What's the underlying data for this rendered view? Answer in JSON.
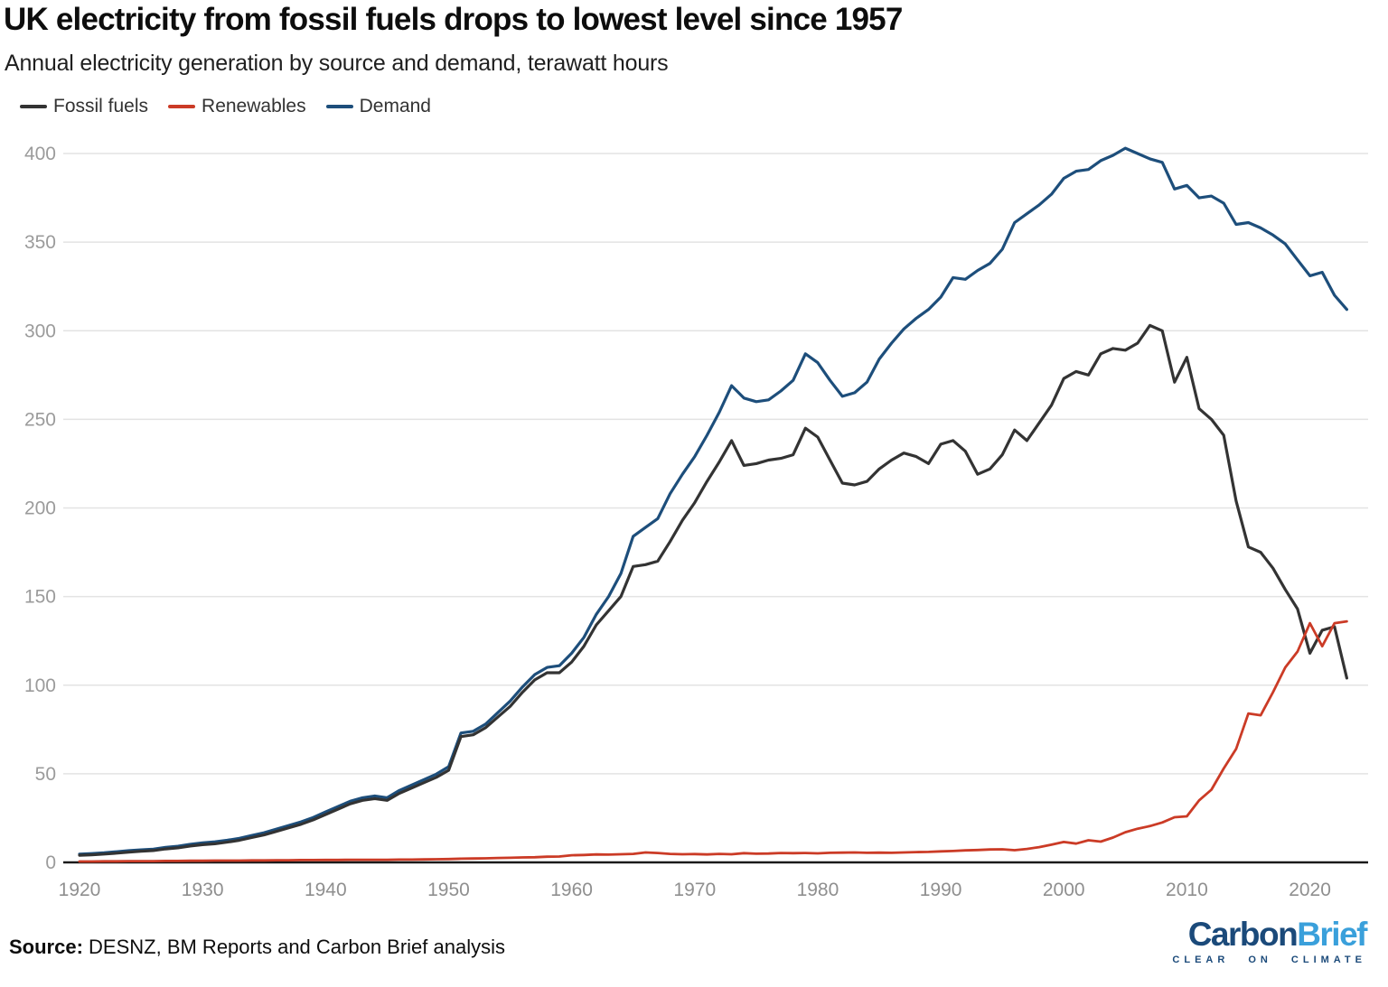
{
  "header": {
    "title": "UK electricity from fossil fuels drops to lowest level since 1957",
    "subtitle": "Annual electricity generation by source and demand, terawatt hours"
  },
  "footer": {
    "source_label": "Source:",
    "source_text": " DESNZ, BM Reports and Carbon Brief analysis"
  },
  "logo": {
    "word1": "Carbon",
    "word2": "Brief",
    "tagline": "CLEAR ON CLIMATE",
    "word1_color": "#1b4a7a",
    "word2_color": "#3aa0db",
    "tagline_color": "#1b4a7a"
  },
  "colors": {
    "fossil": "#333333",
    "renewables": "#cb3b26",
    "demand": "#1d4e7b",
    "grid": "#e3e3e3",
    "axis": "#1a1a1a"
  },
  "chart_data": {
    "type": "line",
    "title": "UK electricity from fossil fuels drops to lowest level since 1957",
    "subtitle": "Annual electricity generation by source and demand, terawatt hours",
    "xlabel": "",
    "ylabel": "terawatt hours",
    "x_start": 1920,
    "x_end": 2023,
    "xlim": [
      1920,
      2023
    ],
    "ylim": [
      0,
      410
    ],
    "grid": true,
    "legend_position": "top-left",
    "xticks": [
      1920,
      1930,
      1940,
      1950,
      1960,
      1970,
      1980,
      1990,
      2000,
      2010,
      2020
    ],
    "yticks": [
      0,
      50,
      100,
      150,
      200,
      250,
      300,
      350,
      400
    ],
    "series": [
      {
        "name": "Fossil fuels",
        "color": "#333333",
        "values": [
          4,
          4.3,
          4.7,
          5.2,
          5.8,
          6.3,
          6.7,
          7.6,
          8.2,
          9.2,
          10,
          10.5,
          11.4,
          12.5,
          14,
          15.5,
          17.5,
          19.5,
          21.5,
          24,
          27,
          30,
          33,
          35,
          36,
          35,
          39,
          42,
          45,
          48,
          52,
          71,
          72,
          76,
          82,
          88,
          96,
          103,
          107,
          107,
          113,
          122,
          134,
          142,
          150,
          167,
          168,
          170,
          181,
          193,
          203,
          215,
          226,
          238,
          224,
          225,
          227,
          228,
          230,
          245,
          240,
          227,
          214,
          213,
          215,
          222,
          227,
          231,
          229,
          225,
          236,
          238,
          232,
          219,
          222,
          230,
          244,
          238,
          248,
          258,
          273,
          277,
          275,
          287,
          290,
          289,
          293,
          303,
          300,
          271,
          285,
          256,
          250,
          241,
          204,
          178,
          175,
          166,
          154,
          143,
          118,
          131,
          133,
          104
        ]
      },
      {
        "name": "Renewables",
        "color": "#cb3b26",
        "values": [
          0.5,
          0.5,
          0.6,
          0.6,
          0.7,
          0.7,
          0.7,
          0.8,
          0.8,
          0.9,
          0.9,
          1,
          1,
          1,
          1.1,
          1.1,
          1.2,
          1.2,
          1.3,
          1.3,
          1.4,
          1.4,
          1.5,
          1.5,
          1.5,
          1.5,
          1.6,
          1.6,
          1.7,
          1.8,
          1.9,
          2.1,
          2.2,
          2.3,
          2.5,
          2.6,
          2.8,
          2.9,
          3.2,
          3.3,
          4,
          4.2,
          4.5,
          4.4,
          4.6,
          4.8,
          5.6,
          5.3,
          4.8,
          4.6,
          4.7,
          4.5,
          4.8,
          4.6,
          5.2,
          4.9,
          5,
          5.3,
          5.2,
          5.3,
          5.1,
          5.4,
          5.5,
          5.6,
          5.4,
          5.5,
          5.4,
          5.6,
          5.8,
          5.9,
          6.2,
          6.4,
          6.8,
          7,
          7.3,
          7.4,
          6.9,
          7.6,
          8.6,
          10,
          11.5,
          10.6,
          12.5,
          11.7,
          14,
          17,
          19,
          20.5,
          22.5,
          25.5,
          26,
          35,
          41,
          53,
          64,
          84,
          83,
          96,
          110,
          119,
          135,
          122,
          135,
          136
        ]
      },
      {
        "name": "Demand",
        "color": "#1d4e7b",
        "values": [
          4.7,
          5,
          5.4,
          6,
          6.6,
          7.1,
          7.5,
          8.5,
          9.1,
          10.2,
          11,
          11.6,
          12.5,
          13.6,
          15.2,
          16.7,
          18.8,
          20.8,
          22.9,
          25.4,
          28.5,
          31.5,
          34.5,
          36.5,
          37.5,
          36.5,
          40.6,
          43.6,
          46.7,
          49.8,
          54,
          73,
          74,
          78,
          84.5,
          91,
          99,
          106,
          110,
          111,
          118,
          127,
          140,
          150,
          163,
          184,
          189,
          194,
          208,
          219,
          229,
          241,
          254,
          269,
          262,
          260,
          261,
          266,
          272,
          287,
          282,
          272,
          263,
          265,
          271,
          284,
          293,
          301,
          307,
          312,
          319,
          330,
          329,
          334,
          338,
          346,
          361,
          366,
          371,
          377,
          386,
          390,
          391,
          396,
          399,
          403,
          400,
          397,
          395,
          380,
          382,
          375,
          376,
          372,
          360,
          361,
          358,
          354,
          349,
          340,
          331,
          333,
          320,
          312
        ]
      }
    ]
  }
}
